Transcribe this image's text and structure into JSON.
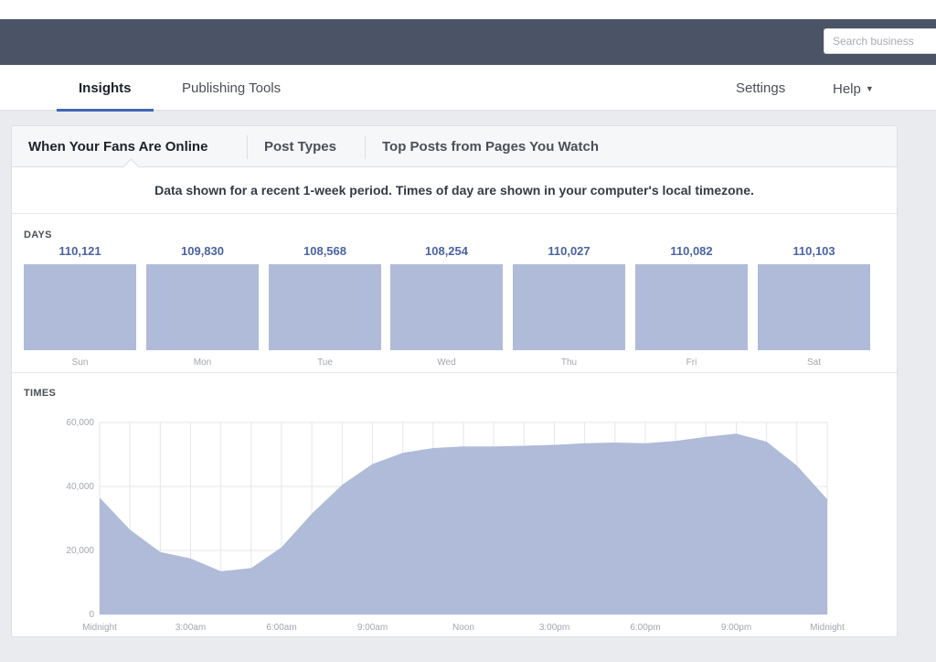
{
  "search": {
    "placeholder": "Search business"
  },
  "nav": {
    "tabs": [
      {
        "label": "Insights"
      },
      {
        "label": "Publishing Tools"
      }
    ],
    "settings_label": "Settings",
    "help_label": "Help"
  },
  "subtabs": [
    {
      "label": "When Your Fans Are Online"
    },
    {
      "label": "Post Types"
    },
    {
      "label": "Top Posts from Pages You Watch"
    }
  ],
  "notice": "Data shown for a recent 1-week period. Times of day are shown in your computer's local timezone.",
  "days": {
    "label": "DAYS",
    "items": [
      {
        "day": "Sun",
        "value": "110,121"
      },
      {
        "day": "Mon",
        "value": "109,830"
      },
      {
        "day": "Tue",
        "value": "108,568"
      },
      {
        "day": "Wed",
        "value": "108,254"
      },
      {
        "day": "Thu",
        "value": "110,027"
      },
      {
        "day": "Fri",
        "value": "110,082"
      },
      {
        "day": "Sat",
        "value": "110,103"
      }
    ]
  },
  "times": {
    "label": "TIMES",
    "colors": {
      "fill": "#afbbd8",
      "grid": "#e5e6e9"
    }
  },
  "chart_data": {
    "type": "area",
    "x": [
      0,
      1,
      2,
      3,
      4,
      5,
      6,
      7,
      8,
      9,
      10,
      11,
      12,
      13,
      14,
      15,
      16,
      17,
      18,
      19,
      20,
      21,
      22,
      23,
      24
    ],
    "values": [
      36500,
      26500,
      19500,
      17500,
      13500,
      14500,
      21000,
      31500,
      40500,
      47000,
      50500,
      52000,
      52500,
      52500,
      52700,
      53000,
      53500,
      53700,
      53500,
      54200,
      55500,
      56500,
      54000,
      46500,
      36000
    ],
    "xlim": [
      0,
      24
    ],
    "ylim": [
      0,
      60000
    ],
    "yticks": [
      0,
      20000,
      40000,
      60000
    ],
    "ytick_labels": [
      "0",
      "20,000",
      "40,000",
      "60,000"
    ],
    "xticks": [
      0,
      3,
      6,
      9,
      12,
      15,
      18,
      21,
      24
    ],
    "xtick_labels": [
      "Midnight",
      "3:00am",
      "6:00am",
      "9:00am",
      "Noon",
      "3:00pm",
      "6:00pm",
      "9:00pm",
      "Midnight"
    ],
    "grid": true
  }
}
